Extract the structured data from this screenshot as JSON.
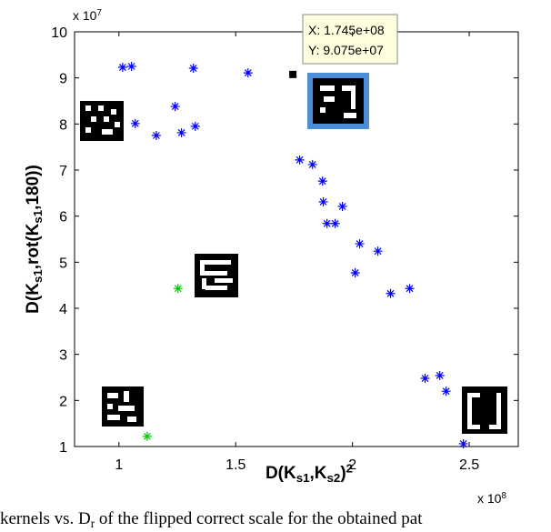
{
  "chart_data": {
    "type": "scatter",
    "x_multiplier": "x 10^8",
    "y_multiplier": "x 10^7",
    "xlabel": "D(K_{s1},K_{s2})^2",
    "ylabel": "D(K_{s1},rot(K_{s1},180))",
    "xlim": [
      0.81,
      2.71
    ],
    "ylim": [
      1,
      10
    ],
    "xticks": [
      1,
      1.5,
      2,
      2.5
    ],
    "yticks": [
      1,
      2,
      3,
      4,
      5,
      6,
      7,
      8,
      9,
      10
    ],
    "series": [
      {
        "color": "#0000ff",
        "marker": "*",
        "x": [
          1.016,
          1.054,
          1.319,
          1.553,
          1.07,
          1.241,
          1.16,
          1.268,
          1.327,
          1.774,
          1.829,
          1.872,
          1.875,
          1.891,
          1.926,
          1.957,
          2.031,
          2.109,
          2.012,
          2.163,
          2.245,
          2.311,
          2.374,
          2.401,
          2.475
        ],
        "values": [
          9.23,
          9.25,
          9.21,
          9.11,
          8.01,
          8.38,
          7.75,
          7.81,
          7.95,
          7.22,
          7.12,
          6.76,
          6.31,
          5.84,
          5.84,
          6.21,
          5.4,
          5.24,
          4.77,
          4.32,
          4.43,
          2.48,
          2.54,
          2.2,
          1.06
        ]
      },
      {
        "color": "#00cc00",
        "marker": "*",
        "x": [
          1.253,
          1.121
        ],
        "values": [
          4.43,
          1.22
        ]
      },
      {
        "color": "#000000",
        "marker": "s",
        "x": [
          1.745
        ],
        "values": [
          9.075
        ]
      }
    ],
    "datatip": {
      "x": "X: 1.745e+08",
      "y": "Y: 9.075e+07"
    }
  },
  "caption": "kernels vs. D_r of the flipped correct scale for the obtained pat"
}
